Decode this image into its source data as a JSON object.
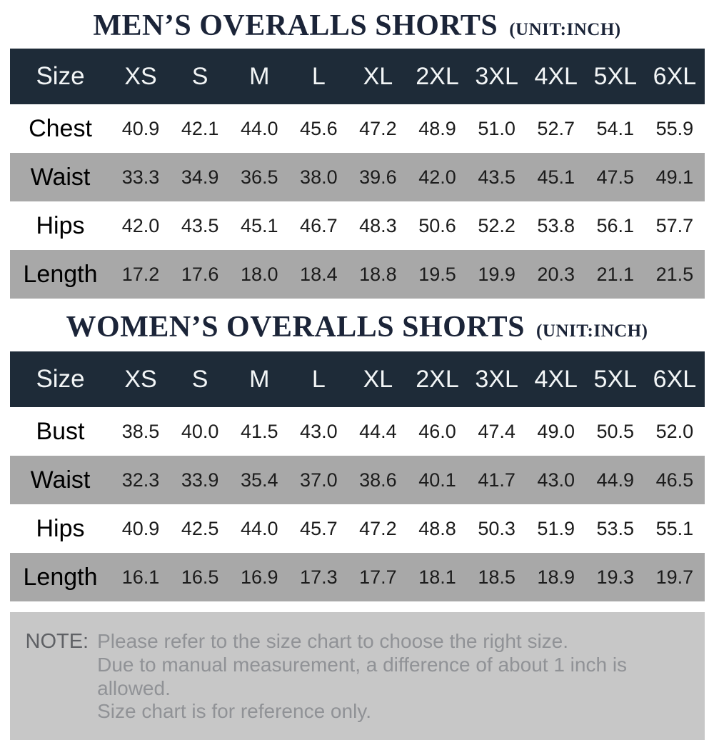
{
  "colors": {
    "header_band": "#1e2b38",
    "stripe_gray": "#a8a8a8",
    "title_navy": "#1b2438",
    "note_bg": "#c7c7c7"
  },
  "tables": [
    {
      "title": "MEN’S OVERALLS SHORTS",
      "unit": "(UNIT:INCH)",
      "header": [
        "Size",
        "XS",
        "S",
        "M",
        "L",
        "XL",
        "2XL",
        "3XL",
        "4XL",
        "5XL",
        "6XL"
      ],
      "rows": [
        {
          "label": "Chest",
          "values": [
            "40.9",
            "42.1",
            "44.0",
            "45.6",
            "47.2",
            "48.9",
            "51.0",
            "52.7",
            "54.1",
            "55.9"
          ]
        },
        {
          "label": "Waist",
          "values": [
            "33.3",
            "34.9",
            "36.5",
            "38.0",
            "39.6",
            "42.0",
            "43.5",
            "45.1",
            "47.5",
            "49.1"
          ]
        },
        {
          "label": "Hips",
          "values": [
            "42.0",
            "43.5",
            "45.1",
            "46.7",
            "48.3",
            "50.6",
            "52.2",
            "53.8",
            "56.1",
            "57.7"
          ]
        },
        {
          "label": "Length",
          "values": [
            "17.2",
            "17.6",
            "18.0",
            "18.4",
            "18.8",
            "19.5",
            "19.9",
            "20.3",
            "21.1",
            "21.5"
          ]
        }
      ]
    },
    {
      "title": "WOMEN’S OVERALLS SHORTS",
      "unit": "(UNIT:INCH)",
      "header": [
        "Size",
        "XS",
        "S",
        "M",
        "L",
        "XL",
        "2XL",
        "3XL",
        "4XL",
        "5XL",
        "6XL"
      ],
      "rows": [
        {
          "label": "Bust",
          "values": [
            "38.5",
            "40.0",
            "41.5",
            "43.0",
            "44.4",
            "46.0",
            "47.4",
            "49.0",
            "50.5",
            "52.0"
          ]
        },
        {
          "label": "Waist",
          "values": [
            "32.3",
            "33.9",
            "35.4",
            "37.0",
            "38.6",
            "40.1",
            "41.7",
            "43.0",
            "44.9",
            "46.5"
          ]
        },
        {
          "label": "Hips",
          "values": [
            "40.9",
            "42.5",
            "44.0",
            "45.7",
            "47.2",
            "48.8",
            "50.3",
            "51.9",
            "53.5",
            "55.1"
          ]
        },
        {
          "label": "Length",
          "values": [
            "16.1",
            "16.5",
            "16.9",
            "17.3",
            "17.7",
            "18.1",
            "18.5",
            "18.9",
            "19.3",
            "19.7"
          ]
        }
      ]
    }
  ],
  "note": {
    "label": "NOTE:",
    "lines": [
      "Please refer to the size chart to choose the right size.",
      "Due to manual measurement, a difference of about 1 inch is allowed.",
      "Size chart is for reference only."
    ]
  },
  "chart_data": [
    {
      "type": "table",
      "title": "MEN'S OVERALLS SHORTS (UNIT:INCH)",
      "categories": [
        "XS",
        "S",
        "M",
        "L",
        "XL",
        "2XL",
        "3XL",
        "4XL",
        "5XL",
        "6XL"
      ],
      "series": [
        {
          "name": "Chest",
          "values": [
            40.9,
            42.1,
            44.0,
            45.6,
            47.2,
            48.9,
            51.0,
            52.7,
            54.1,
            55.9
          ]
        },
        {
          "name": "Waist",
          "values": [
            33.3,
            34.9,
            36.5,
            38.0,
            39.6,
            42.0,
            43.5,
            45.1,
            47.5,
            49.1
          ]
        },
        {
          "name": "Hips",
          "values": [
            42.0,
            43.5,
            45.1,
            46.7,
            48.3,
            50.6,
            52.2,
            53.8,
            56.1,
            57.7
          ]
        },
        {
          "name": "Length",
          "values": [
            17.2,
            17.6,
            18.0,
            18.4,
            18.8,
            19.5,
            19.9,
            20.3,
            21.1,
            21.5
          ]
        }
      ]
    },
    {
      "type": "table",
      "title": "WOMEN'S OVERALLS SHORTS (UNIT:INCH)",
      "categories": [
        "XS",
        "S",
        "M",
        "L",
        "XL",
        "2XL",
        "3XL",
        "4XL",
        "5XL",
        "6XL"
      ],
      "series": [
        {
          "name": "Bust",
          "values": [
            38.5,
            40.0,
            41.5,
            43.0,
            44.4,
            46.0,
            47.4,
            49.0,
            50.5,
            52.0
          ]
        },
        {
          "name": "Waist",
          "values": [
            32.3,
            33.9,
            35.4,
            37.0,
            38.6,
            40.1,
            41.7,
            43.0,
            44.9,
            46.5
          ]
        },
        {
          "name": "Hips",
          "values": [
            40.9,
            42.5,
            44.0,
            45.7,
            47.2,
            48.8,
            50.3,
            51.9,
            53.5,
            55.1
          ]
        },
        {
          "name": "Length",
          "values": [
            16.1,
            16.5,
            16.9,
            17.3,
            17.7,
            18.1,
            18.5,
            18.9,
            19.3,
            19.7
          ]
        }
      ]
    }
  ]
}
